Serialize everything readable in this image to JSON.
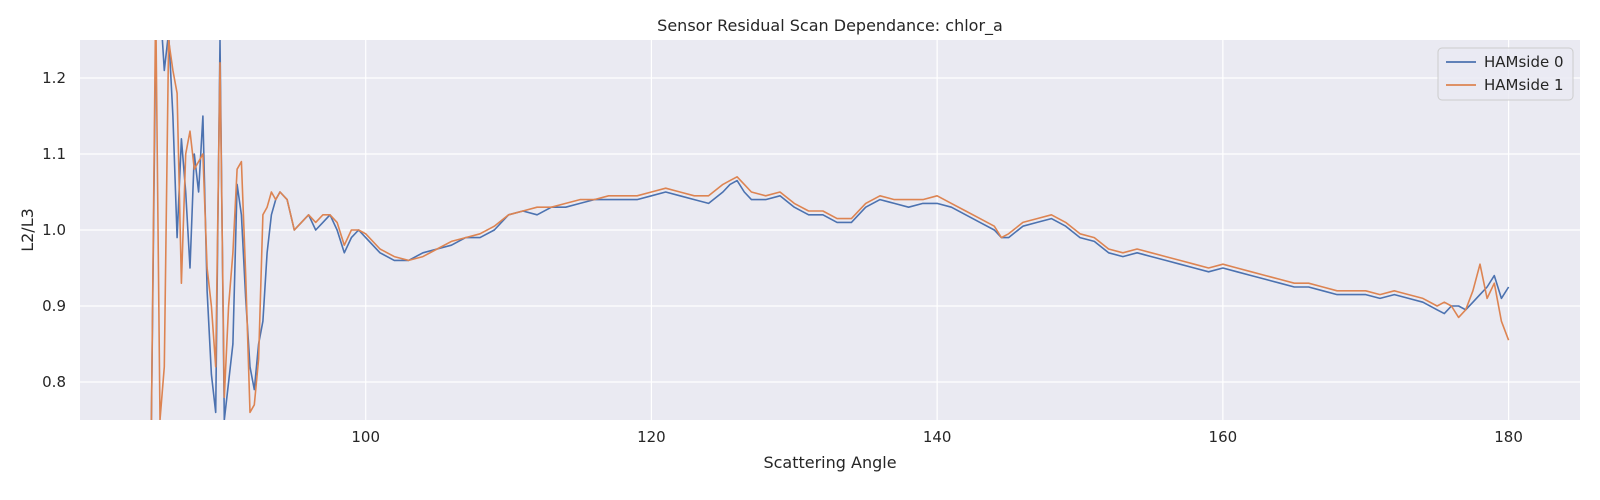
{
  "chart_data": {
    "type": "line",
    "title": "Sensor Residual Scan Dependance: chlor_a",
    "xlabel": "Scattering Angle",
    "ylabel": "L2/L3",
    "xlim": [
      80,
      185
    ],
    "ylim": [
      0.75,
      1.25
    ],
    "xticks": [
      100,
      120,
      140,
      160,
      180
    ],
    "yticks": [
      0.8,
      0.9,
      1.0,
      1.1,
      1.2
    ],
    "grid": true,
    "legend_position": "top-right",
    "background": "#eaeaf2",
    "series": [
      {
        "name": "HAMside 0",
        "color": "#4c72b0",
        "x": [
          85.0,
          85.3,
          85.6,
          85.9,
          86.2,
          86.5,
          86.8,
          87.1,
          87.4,
          87.7,
          88.0,
          88.3,
          88.6,
          88.9,
          89.2,
          89.5,
          89.8,
          90.1,
          90.4,
          90.7,
          91.0,
          91.3,
          91.6,
          91.9,
          92.2,
          92.5,
          92.8,
          93.1,
          93.4,
          93.7,
          94.0,
          94.5,
          95.0,
          95.5,
          96.0,
          96.5,
          97.0,
          97.5,
          98.0,
          98.5,
          99.0,
          99.5,
          100.0,
          101.0,
          102.0,
          103.0,
          104.0,
          105.0,
          106.0,
          107.0,
          108.0,
          109.0,
          110.0,
          111.0,
          112.0,
          113.0,
          114.0,
          115.0,
          116.0,
          117.0,
          118.0,
          119.0,
          120.0,
          121.0,
          122.0,
          123.0,
          124.0,
          125.0,
          125.5,
          126.0,
          126.5,
          127.0,
          128.0,
          129.0,
          130.0,
          131.0,
          132.0,
          133.0,
          134.0,
          135.0,
          136.0,
          137.0,
          138.0,
          139.0,
          140.0,
          141.0,
          142.0,
          143.0,
          144.0,
          144.5,
          145.0,
          146.0,
          147.0,
          148.0,
          149.0,
          150.0,
          151.0,
          152.0,
          153.0,
          154.0,
          155.0,
          156.0,
          157.0,
          158.0,
          159.0,
          160.0,
          161.0,
          162.0,
          163.0,
          164.0,
          165.0,
          166.0,
          167.0,
          168.0,
          169.0,
          170.0,
          171.0,
          172.0,
          173.0,
          174.0,
          175.0,
          175.5,
          176.0,
          176.5,
          177.0,
          177.5,
          178.0,
          178.5,
          179.0,
          179.5,
          180.0
        ],
        "values": [
          0.75,
          1.25,
          1.3,
          1.21,
          1.26,
          1.15,
          0.99,
          1.12,
          1.05,
          0.95,
          1.1,
          1.05,
          1.15,
          0.92,
          0.81,
          0.76,
          1.25,
          0.75,
          0.8,
          0.85,
          1.06,
          1.02,
          0.91,
          0.82,
          0.79,
          0.85,
          0.88,
          0.97,
          1.02,
          1.04,
          1.05,
          1.04,
          1.0,
          1.01,
          1.02,
          1.0,
          1.01,
          1.02,
          1.0,
          0.97,
          0.99,
          1.0,
          0.99,
          0.97,
          0.96,
          0.96,
          0.97,
          0.975,
          0.98,
          0.99,
          0.99,
          1.0,
          1.02,
          1.025,
          1.02,
          1.03,
          1.03,
          1.035,
          1.04,
          1.04,
          1.04,
          1.04,
          1.045,
          1.05,
          1.045,
          1.04,
          1.035,
          1.05,
          1.06,
          1.065,
          1.05,
          1.04,
          1.04,
          1.045,
          1.03,
          1.02,
          1.02,
          1.01,
          1.01,
          1.03,
          1.04,
          1.035,
          1.03,
          1.035,
          1.035,
          1.03,
          1.02,
          1.01,
          1.0,
          0.99,
          0.99,
          1.005,
          1.01,
          1.015,
          1.005,
          0.99,
          0.985,
          0.97,
          0.965,
          0.97,
          0.965,
          0.96,
          0.955,
          0.95,
          0.945,
          0.95,
          0.945,
          0.94,
          0.935,
          0.93,
          0.925,
          0.925,
          0.92,
          0.915,
          0.915,
          0.915,
          0.91,
          0.915,
          0.91,
          0.905,
          0.895,
          0.89,
          0.9,
          0.9,
          0.895,
          0.905,
          0.915,
          0.925,
          0.94,
          0.91,
          0.925
        ]
      },
      {
        "name": "HAMside 1",
        "color": "#dd8452",
        "x": [
          85.0,
          85.3,
          85.6,
          85.9,
          86.2,
          86.5,
          86.8,
          87.1,
          87.4,
          87.7,
          88.0,
          88.3,
          88.6,
          88.9,
          89.2,
          89.5,
          89.8,
          90.1,
          90.4,
          90.7,
          91.0,
          91.3,
          91.6,
          91.9,
          92.2,
          92.5,
          92.8,
          93.1,
          93.4,
          93.7,
          94.0,
          94.5,
          95.0,
          95.5,
          96.0,
          96.5,
          97.0,
          97.5,
          98.0,
          98.5,
          99.0,
          99.5,
          100.0,
          101.0,
          102.0,
          103.0,
          104.0,
          105.0,
          106.0,
          107.0,
          108.0,
          109.0,
          110.0,
          111.0,
          112.0,
          113.0,
          114.0,
          115.0,
          116.0,
          117.0,
          118.0,
          119.0,
          120.0,
          121.0,
          122.0,
          123.0,
          124.0,
          125.0,
          125.5,
          126.0,
          126.5,
          127.0,
          128.0,
          129.0,
          130.0,
          131.0,
          132.0,
          133.0,
          134.0,
          135.0,
          136.0,
          137.0,
          138.0,
          139.0,
          140.0,
          141.0,
          142.0,
          143.0,
          144.0,
          144.5,
          145.0,
          146.0,
          147.0,
          148.0,
          149.0,
          150.0,
          151.0,
          152.0,
          153.0,
          154.0,
          155.0,
          156.0,
          157.0,
          158.0,
          159.0,
          160.0,
          161.0,
          162.0,
          163.0,
          164.0,
          165.0,
          166.0,
          167.0,
          168.0,
          169.0,
          170.0,
          171.0,
          172.0,
          173.0,
          174.0,
          175.0,
          175.5,
          176.0,
          176.5,
          177.0,
          177.5,
          178.0,
          178.5,
          179.0,
          179.5,
          180.0
        ],
        "values": [
          0.75,
          1.3,
          0.75,
          0.82,
          1.25,
          1.21,
          1.18,
          0.93,
          1.1,
          1.13,
          1.08,
          1.09,
          1.1,
          0.95,
          0.9,
          0.82,
          1.22,
          0.78,
          0.9,
          0.97,
          1.08,
          1.09,
          0.94,
          0.76,
          0.77,
          0.83,
          1.02,
          1.03,
          1.05,
          1.04,
          1.05,
          1.04,
          1.0,
          1.01,
          1.02,
          1.01,
          1.02,
          1.02,
          1.01,
          0.98,
          1.0,
          1.0,
          0.995,
          0.975,
          0.965,
          0.96,
          0.965,
          0.975,
          0.985,
          0.99,
          0.995,
          1.005,
          1.02,
          1.025,
          1.03,
          1.03,
          1.035,
          1.04,
          1.04,
          1.045,
          1.045,
          1.045,
          1.05,
          1.055,
          1.05,
          1.045,
          1.045,
          1.06,
          1.065,
          1.07,
          1.06,
          1.05,
          1.045,
          1.05,
          1.035,
          1.025,
          1.025,
          1.015,
          1.015,
          1.035,
          1.045,
          1.04,
          1.04,
          1.04,
          1.045,
          1.035,
          1.025,
          1.015,
          1.005,
          0.99,
          0.995,
          1.01,
          1.015,
          1.02,
          1.01,
          0.995,
          0.99,
          0.975,
          0.97,
          0.975,
          0.97,
          0.965,
          0.96,
          0.955,
          0.95,
          0.955,
          0.95,
          0.945,
          0.94,
          0.935,
          0.93,
          0.93,
          0.925,
          0.92,
          0.92,
          0.92,
          0.915,
          0.92,
          0.915,
          0.91,
          0.9,
          0.905,
          0.9,
          0.885,
          0.895,
          0.92,
          0.955,
          0.91,
          0.93,
          0.88,
          0.855
        ]
      }
    ]
  }
}
